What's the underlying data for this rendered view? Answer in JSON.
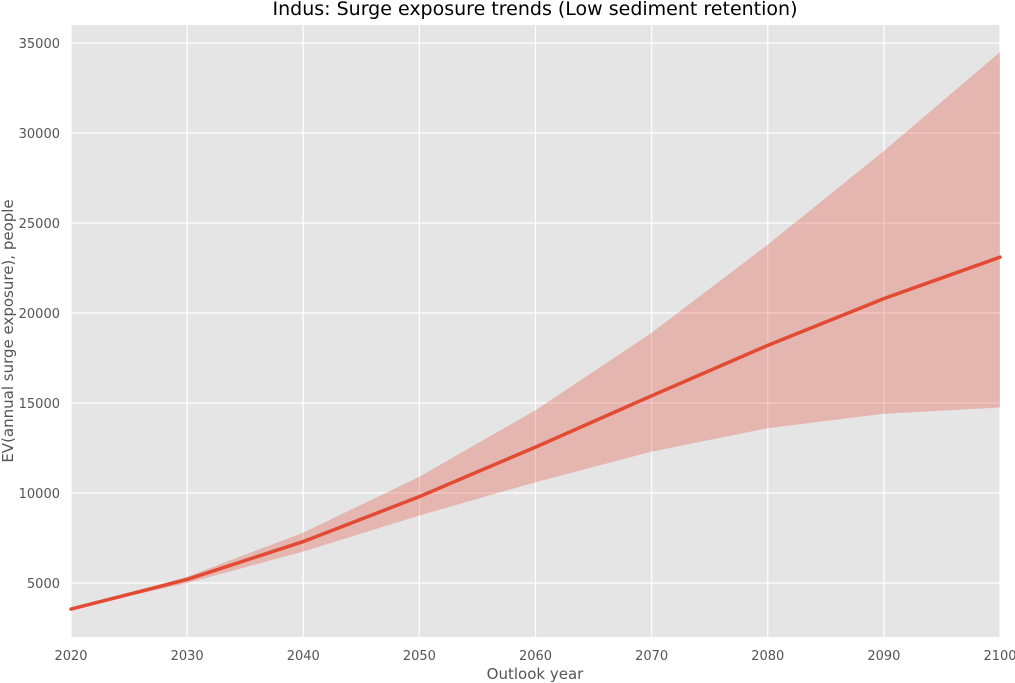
{
  "chart_data": {
    "type": "line",
    "title": "Indus: Surge exposure trends (Low sediment retention)",
    "xlabel": "Outlook year",
    "ylabel": "EV(annual surge exposure), people",
    "x": [
      2020,
      2030,
      2040,
      2050,
      2060,
      2070,
      2080,
      2090,
      2100
    ],
    "series": [
      {
        "values": [
          3550,
          5200,
          7300,
          9800,
          12550,
          15400,
          18200,
          20800,
          23100
        ],
        "band_lower": [
          3550,
          5000,
          6750,
          8750,
          10600,
          12300,
          13600,
          14400,
          14750
        ],
        "band_upper": [
          3550,
          5350,
          7800,
          10900,
          14600,
          18900,
          23800,
          29000,
          34500
        ],
        "color": "#E24A33",
        "band_color": "#E24A33"
      }
    ],
    "xlim": [
      2020,
      2100
    ],
    "ylim": [
      2000,
      36000
    ],
    "xticks": [
      2020,
      2030,
      2040,
      2050,
      2060,
      2070,
      2080,
      2090,
      2100
    ],
    "yticks": [
      5000,
      10000,
      15000,
      20000,
      25000,
      30000,
      35000
    ],
    "grid": true,
    "legend": false,
    "colors": {
      "plot_background": "#E5E5E5",
      "grid": "#FFFFFF",
      "line": "#E24A33",
      "band": "#E24A33"
    }
  }
}
